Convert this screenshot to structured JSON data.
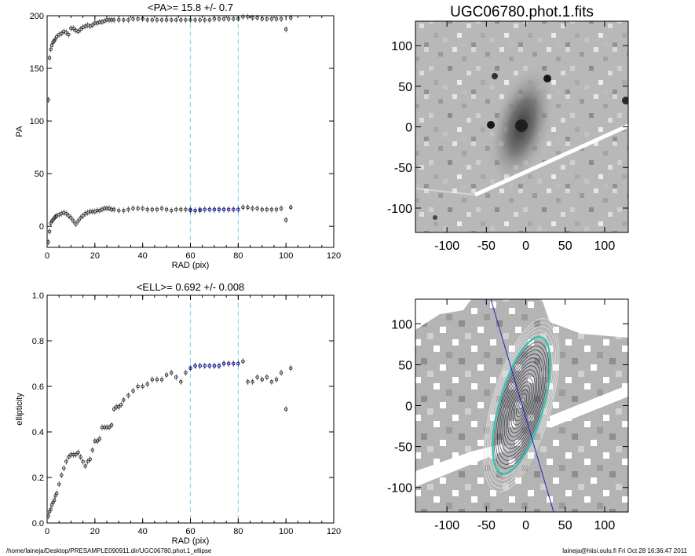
{
  "footer": {
    "path": "/home/laineja/Desktop/PRESAMPLE090911.dir/UGC06780.phot.1_ellipse",
    "stamp": "laineja@hiisi.oulu.fi  Fri Oct 28 16:36:47 2011"
  },
  "colors": {
    "fit_range": "#7fdcec",
    "fit_points": "#1010c0",
    "ellipse_highlight": "#40c0b0"
  },
  "chart_data": [
    {
      "type": "scatter",
      "title": "<PA>=  15.8 +/-   0.7",
      "xlabel": "RAD (pix)",
      "ylabel": "PA",
      "xlim": [
        0,
        120
      ],
      "ylim": [
        -20,
        200
      ],
      "xticks": [
        "0",
        "20",
        "40",
        "60",
        "80",
        "100",
        "120"
      ],
      "yticks": [
        "0",
        "50",
        "100",
        "150",
        "200"
      ],
      "fit_range": [
        60,
        80
      ],
      "series": [
        {
          "values_x": [
            0.5,
            1,
            1.5,
            2,
            2.5,
            3,
            3.5,
            4,
            5,
            6,
            7,
            8,
            9,
            10,
            11,
            12,
            13,
            14,
            15,
            16,
            17,
            18,
            19,
            20,
            21,
            22,
            23,
            24,
            25,
            26,
            27,
            28,
            30,
            32,
            34,
            36,
            38,
            40,
            42,
            44,
            46,
            48,
            50,
            52,
            54,
            56,
            58,
            60,
            62,
            64,
            66,
            68,
            70,
            72,
            74,
            76,
            78,
            80,
            82,
            84,
            86,
            88,
            90,
            92,
            94,
            96,
            98,
            100,
            102
          ],
          "values_y": [
            -15,
            -5,
            3,
            5,
            6,
            8,
            9,
            10,
            11,
            12,
            13,
            12,
            10,
            8,
            5,
            2,
            5,
            8,
            10,
            12,
            13,
            14,
            14,
            14,
            15,
            15,
            16,
            17,
            17,
            17,
            16,
            16,
            15,
            15,
            16,
            17,
            17,
            17,
            16,
            16,
            16,
            17,
            16,
            15,
            16,
            16,
            16,
            16,
            15,
            15,
            16,
            16,
            16,
            16,
            16,
            16,
            16,
            16,
            18,
            18,
            17,
            17,
            16,
            16,
            16,
            16,
            17,
            6,
            18
          ]
        },
        {
          "values_x": [
            0.5,
            1,
            1.5,
            2,
            2.5,
            3,
            3.5,
            4,
            5,
            6,
            7,
            8,
            9,
            10,
            11,
            12,
            13,
            14,
            15,
            16,
            17,
            18,
            19,
            20,
            21,
            22,
            23,
            24,
            25,
            26,
            27,
            28,
            30,
            32,
            34,
            36,
            38,
            40,
            42,
            44,
            46,
            48,
            50,
            52,
            54,
            56,
            58,
            60,
            62,
            64,
            66,
            68,
            70,
            72,
            74,
            76,
            78,
            80,
            82,
            84,
            86,
            88,
            90,
            92,
            94,
            96,
            98,
            100,
            102
          ],
          "values_y": [
            120,
            160,
            168,
            172,
            175,
            176,
            178,
            180,
            182,
            183,
            185,
            184,
            182,
            188,
            188,
            186,
            185,
            187,
            189,
            190,
            191,
            190,
            191,
            193,
            193,
            194,
            194,
            195,
            196,
            196,
            196,
            196,
            196,
            196,
            196,
            197,
            197,
            197,
            196,
            196,
            196,
            196,
            196,
            196,
            196,
            196,
            196,
            196,
            196,
            196,
            196,
            196,
            197,
            197,
            197,
            197,
            197,
            197,
            199,
            199,
            198,
            198,
            197,
            197,
            197,
            197,
            197,
            187,
            198
          ]
        }
      ],
      "fit_points_x": [
        60,
        62,
        64,
        66,
        68,
        70,
        72,
        74,
        76,
        78,
        80
      ],
      "fit_points_y": [
        15,
        15,
        16,
        16,
        16,
        16,
        16,
        16,
        16,
        16,
        16
      ]
    },
    {
      "type": "scatter",
      "title": "<ELL>= 0.692 +/-  0.008",
      "xlabel": "RAD (pix)",
      "ylabel": "ellipticity",
      "xlim": [
        0,
        120
      ],
      "ylim": [
        0,
        1
      ],
      "xticks": [
        "0",
        "20",
        "40",
        "60",
        "80",
        "100",
        "120"
      ],
      "yticks": [
        "0.0",
        "0.2",
        "0.4",
        "0.6",
        "0.8",
        "1.0"
      ],
      "fit_range": [
        60,
        80
      ],
      "values_x": [
        0.5,
        1,
        1.5,
        2,
        2.5,
        3,
        3.5,
        4,
        5,
        6,
        7,
        8,
        9,
        10,
        11,
        12,
        13,
        14,
        15,
        16,
        17,
        18,
        19,
        20,
        21,
        22,
        23,
        24,
        25,
        26,
        27,
        28,
        29,
        30,
        31,
        32,
        34,
        36,
        38,
        40,
        42,
        44,
        46,
        48,
        50,
        52,
        54,
        56,
        58,
        60,
        62,
        64,
        66,
        68,
        70,
        72,
        74,
        76,
        78,
        80,
        82,
        84,
        86,
        88,
        90,
        92,
        94,
        96,
        98,
        100,
        102
      ],
      "values_y": [
        0.03,
        0.05,
        0.06,
        0.08,
        0.09,
        0.1,
        0.12,
        0.13,
        0.17,
        0.21,
        0.24,
        0.27,
        0.29,
        0.3,
        0.3,
        0.3,
        0.31,
        0.29,
        0.27,
        0.25,
        0.27,
        0.28,
        0.32,
        0.36,
        0.36,
        0.37,
        0.42,
        0.42,
        0.42,
        0.42,
        0.43,
        0.5,
        0.51,
        0.51,
        0.52,
        0.54,
        0.56,
        0.58,
        0.6,
        0.6,
        0.61,
        0.63,
        0.63,
        0.63,
        0.65,
        0.66,
        0.64,
        0.62,
        0.66,
        0.68,
        0.69,
        0.69,
        0.69,
        0.69,
        0.69,
        0.69,
        0.7,
        0.7,
        0.7,
        0.7,
        0.71,
        0.62,
        0.62,
        0.64,
        0.63,
        0.64,
        0.62,
        0.63,
        0.66,
        0.5,
        0.68
      ],
      "fit_points_x": [
        60,
        62,
        64,
        66,
        68,
        70,
        72,
        74,
        76,
        78,
        80
      ],
      "fit_points_y": [
        0.68,
        0.69,
        0.69,
        0.69,
        0.69,
        0.69,
        0.69,
        0.7,
        0.7,
        0.7,
        0.7
      ]
    },
    {
      "type": "heatmap",
      "title": "UGC06780.phot.1.fits",
      "xlim": [
        -140,
        130
      ],
      "ylim": [
        -130,
        130
      ],
      "xticks": [
        "-100",
        "-50",
        "0",
        "50",
        "100"
      ],
      "yticks": [
        "100",
        "50",
        "0",
        "-50",
        "-100"
      ],
      "xtick_values": [
        -100,
        -50,
        0,
        50,
        100
      ],
      "ytick_values": [
        100,
        50,
        0,
        -50,
        -100
      ]
    },
    {
      "type": "heatmap",
      "title": "",
      "xlim": [
        -140,
        130
      ],
      "ylim": [
        -130,
        130
      ],
      "xticks": [
        "-100",
        "-50",
        "0",
        "50",
        "100"
      ],
      "yticks": [
        "100",
        "50",
        "0",
        "-50",
        "-100"
      ],
      "xtick_values": [
        -100,
        -50,
        0,
        50,
        100
      ],
      "ytick_values": [
        100,
        50,
        0,
        -50,
        -100
      ]
    }
  ]
}
